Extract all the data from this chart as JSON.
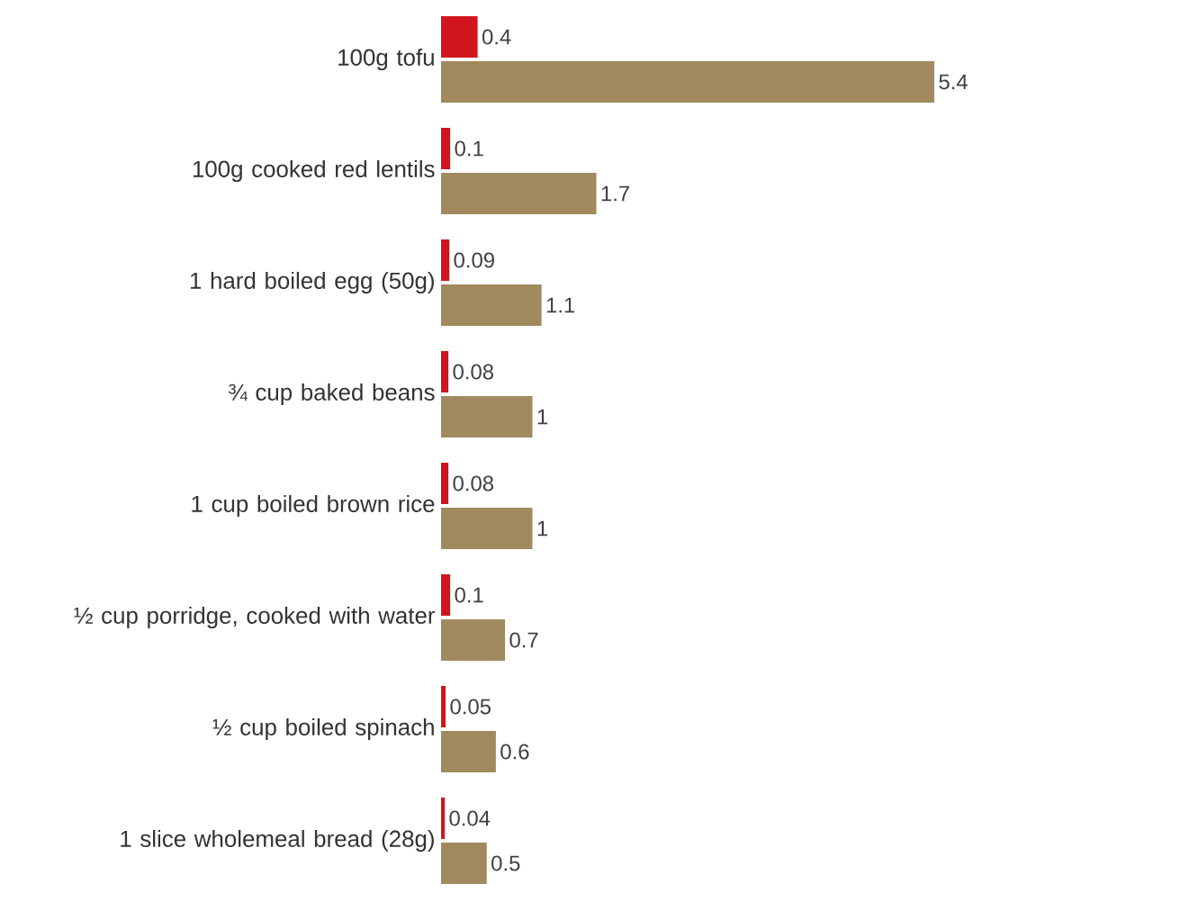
{
  "chart_data": {
    "type": "bar",
    "orientation": "horizontal",
    "data_labels": true,
    "categories": [
      "100g tofu",
      "100g cooked red lentils",
      "1 hard boiled egg (50g)",
      "¾ cup baked beans",
      "1 cup boiled brown rice",
      "½ cup porridge, cooked with water",
      "½ cup boiled spinach",
      "1 slice wholemeal bread (28g)"
    ],
    "series": [
      {
        "color": "#d0151c",
        "values": [
          0.4,
          0.1,
          0.09,
          0.08,
          0.08,
          0.1,
          0.05,
          0.04
        ]
      },
      {
        "color": "#a08a5e",
        "values": [
          5.4,
          1.7,
          1.1,
          1,
          1,
          0.7,
          0.6,
          0.5
        ]
      }
    ]
  }
}
